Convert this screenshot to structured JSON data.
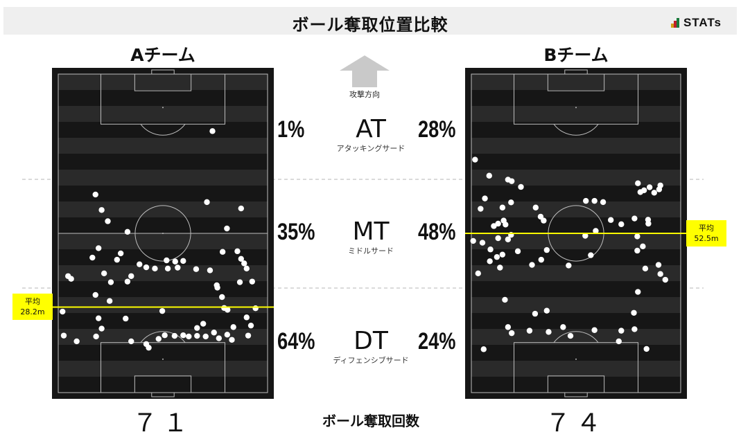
{
  "header": {
    "title": "ボール奪取位置比較",
    "logo_text": "STATs"
  },
  "direction": {
    "label": "攻撃方向"
  },
  "zones": [
    {
      "code": "AT",
      "name": "アタッキングサード",
      "team_a_pct": "1%",
      "team_b_pct": "28%"
    },
    {
      "code": "MT",
      "name": "ミドルサード",
      "team_a_pct": "35%",
      "team_b_pct": "48%"
    },
    {
      "code": "DT",
      "name": "ディフェンシブサード",
      "team_a_pct": "64%",
      "team_b_pct": "24%"
    }
  ],
  "footer": {
    "label": "ボール奪取回数"
  },
  "teams": [
    {
      "name": "Aチーム",
      "count": "７１",
      "avg_label": "平均",
      "avg_value": "28.2m"
    },
    {
      "name": "Bチーム",
      "count": "７４",
      "avg_label": "平均",
      "avg_value": "52.5m"
    }
  ],
  "colors": {
    "pitch_bg": "#161616",
    "stripe": "#2a2a2a",
    "line": "#bdbdbd",
    "avg_line": "#ffff00",
    "dot": "#ffffff",
    "title_bar": "#efefef"
  },
  "chart_data": {
    "type": "scatter",
    "x_unit": "pitch width (m)",
    "y_unit": "distance from own goal line (m)",
    "xlim": [
      0,
      68
    ],
    "ylim": [
      0,
      105
    ],
    "series": [
      {
        "name": "Aチーム",
        "average_y": 28.2,
        "points": [
          [
            50.1,
            86.2
          ],
          [
            12.1,
            65.3
          ],
          [
            14.1,
            60.2
          ],
          [
            48.3,
            62.8
          ],
          [
            59.4,
            60.7
          ],
          [
            16.1,
            56.5
          ],
          [
            54.8,
            54.1
          ],
          [
            22.5,
            53.0
          ],
          [
            13.1,
            47.6
          ],
          [
            11.1,
            44.5
          ],
          [
            20.3,
            45.9
          ],
          [
            53.4,
            46.4
          ],
          [
            19.1,
            43.8
          ],
          [
            26.4,
            42.3
          ],
          [
            28.6,
            41.3
          ],
          [
            35.2,
            43.6
          ],
          [
            38.0,
            43.2
          ],
          [
            40.6,
            43.4
          ],
          [
            58.2,
            46.6
          ],
          [
            59.4,
            44.1
          ],
          [
            60.4,
            42.6
          ],
          [
            3.2,
            38.4
          ],
          [
            14.9,
            39.3
          ],
          [
            23.7,
            38.4
          ],
          [
            31.4,
            40.9
          ],
          [
            35.6,
            40.9
          ],
          [
            38.8,
            41.2
          ],
          [
            44.8,
            40.7
          ],
          [
            49.3,
            40.3
          ],
          [
            61.2,
            40.9
          ],
          [
            4.2,
            37.5
          ],
          [
            17.1,
            36.4
          ],
          [
            22.5,
            36.6
          ],
          [
            59.0,
            36.4
          ],
          [
            63.0,
            36.6
          ],
          [
            51.5,
            35.4
          ],
          [
            51.7,
            34.6
          ],
          [
            12.1,
            32.2
          ],
          [
            53.2,
            31.5
          ],
          [
            16.7,
            30.2
          ],
          [
            1.4,
            26.7
          ],
          [
            53.9,
            27.9
          ],
          [
            55.0,
            27.3
          ],
          [
            64.1,
            27.8
          ],
          [
            33.8,
            26.9
          ],
          [
            13.1,
            24.5
          ],
          [
            21.9,
            24.4
          ],
          [
            61.2,
            24.8
          ],
          [
            47.1,
            22.7
          ],
          [
            14.1,
            21.1
          ],
          [
            45.1,
            21.3
          ],
          [
            56.9,
            21.6
          ],
          [
            62.6,
            22.1
          ],
          [
            1.8,
            18.8
          ],
          [
            32.6,
            17.7
          ],
          [
            12.3,
            18.5
          ],
          [
            23.7,
            16.9
          ],
          [
            34.6,
            18.9
          ],
          [
            37.8,
            18.7
          ],
          [
            40.6,
            18.9
          ],
          [
            42.4,
            18.5
          ],
          [
            45.1,
            18.7
          ],
          [
            47.9,
            18.5
          ],
          [
            54.9,
            19.1
          ],
          [
            61.7,
            18.8
          ],
          [
            6.0,
            16.9
          ],
          [
            28.6,
            16.0
          ],
          [
            29.4,
            14.8
          ],
          [
            50.6,
            19.8
          ],
          [
            52.2,
            17.9
          ],
          [
            56.4,
            17.4
          ]
        ]
      },
      {
        "name": "Bチーム",
        "average_y": 52.5,
        "points": [
          [
            2.2,
            39.3
          ],
          [
            38.8,
            45.3
          ],
          [
            53.9,
            46.8
          ],
          [
            24.5,
            47.0
          ],
          [
            31.6,
            41.9
          ],
          [
            56.5,
            40.9
          ],
          [
            37.0,
            51.7
          ],
          [
            1.2,
            76.8
          ],
          [
            5.8,
            71.5
          ],
          [
            11.9,
            70.2
          ],
          [
            13.1,
            69.7
          ],
          [
            16.1,
            67.8
          ],
          [
            54.1,
            69.0
          ],
          [
            56.1,
            66.7
          ],
          [
            57.9,
            67.7
          ],
          [
            61.0,
            67.0
          ],
          [
            61.4,
            68.3
          ],
          [
            4.4,
            64.0
          ],
          [
            37.2,
            63.2
          ],
          [
            40.0,
            63.2
          ],
          [
            42.8,
            62.8
          ],
          [
            12.9,
            62.7
          ],
          [
            54.9,
            66.1
          ],
          [
            59.4,
            65.9
          ],
          [
            3.0,
            60.6
          ],
          [
            10.1,
            61.0
          ],
          [
            20.9,
            61.0
          ],
          [
            10.5,
            56.7
          ],
          [
            22.5,
            58.0
          ],
          [
            23.5,
            56.7
          ],
          [
            45.3,
            56.9
          ],
          [
            53.0,
            57.4
          ],
          [
            57.4,
            57.0
          ],
          [
            8.7,
            55.7
          ],
          [
            7.3,
            54.9
          ],
          [
            11.1,
            55.4
          ],
          [
            57.5,
            55.7
          ],
          [
            48.7,
            55.5
          ],
          [
            40.4,
            53.3
          ],
          [
            12.9,
            52.0
          ],
          [
            11.9,
            50.5
          ],
          [
            53.9,
            51.5
          ],
          [
            3.6,
            49.4
          ],
          [
            8.7,
            50.9
          ],
          [
            0.6,
            50.0
          ],
          [
            10.1,
            45.5
          ],
          [
            15.1,
            46.6
          ],
          [
            19.7,
            42.1
          ],
          [
            22.7,
            43.8
          ],
          [
            55.7,
            48.2
          ],
          [
            6.2,
            47.2
          ],
          [
            6.0,
            43.3
          ],
          [
            8.3,
            44.7
          ],
          [
            9.3,
            41.2
          ],
          [
            60.8,
            42.1
          ],
          [
            61.4,
            39.1
          ],
          [
            63.0,
            37.2
          ],
          [
            54.1,
            33.2
          ],
          [
            10.9,
            30.6
          ],
          [
            20.7,
            26.0
          ],
          [
            24.5,
            27.0
          ],
          [
            11.9,
            21.6
          ],
          [
            52.8,
            26.3
          ],
          [
            53.0,
            20.9
          ],
          [
            13.1,
            19.6
          ],
          [
            25.1,
            20.0
          ],
          [
            29.8,
            21.6
          ],
          [
            40.0,
            20.6
          ],
          [
            48.7,
            20.4
          ],
          [
            18.9,
            20.4
          ],
          [
            32.2,
            18.7
          ],
          [
            47.9,
            16.9
          ],
          [
            4.0,
            14.3
          ],
          [
            56.9,
            14.4
          ]
        ]
      }
    ]
  }
}
